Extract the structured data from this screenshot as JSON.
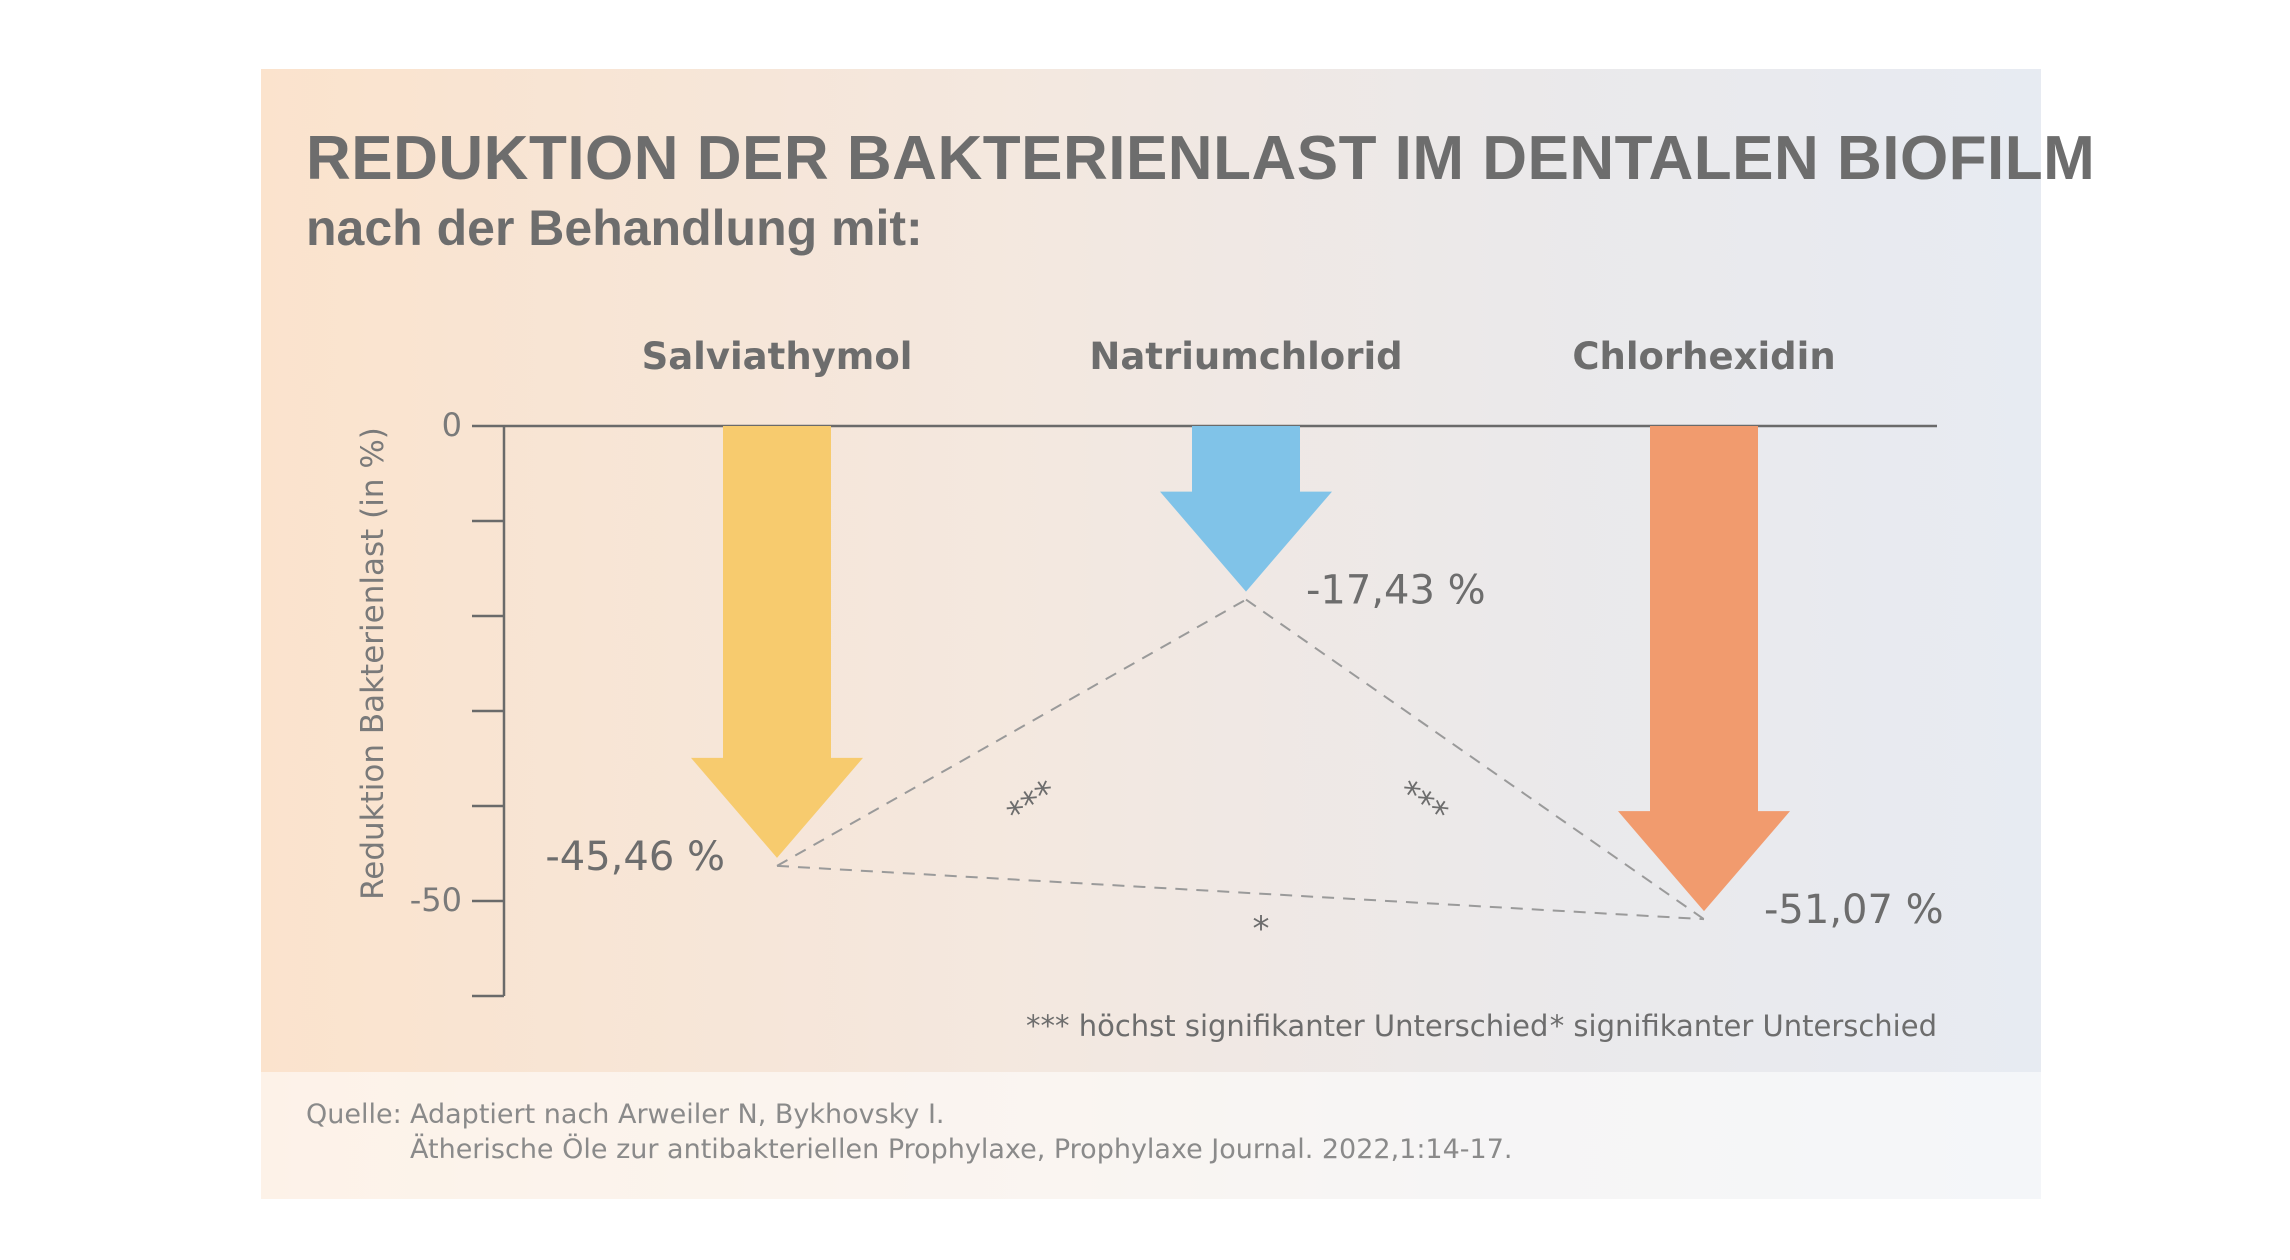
{
  "title": "REDUKTION DER BAKTERIENLAST IM DENTALEN BIOFILM",
  "subtitle": "nach der Behandlung mit:",
  "chart_data": {
    "type": "bar",
    "orientation": "downward-arrows",
    "categories": [
      "Salviathymol",
      "Natriumchlorid",
      "Chlorhexidin"
    ],
    "values": [
      -45.46,
      -17.43,
      -51.07
    ],
    "value_labels": [
      "-45,46 %",
      "-17,43 %",
      "-51,07 %"
    ],
    "colors": [
      "#f7cb6e",
      "#80c3e8",
      "#f19b6e"
    ],
    "ylabel": "Reduktion Bakterienlast (in %)",
    "ylim": [
      -60,
      0
    ],
    "yticks": [
      0,
      -10,
      -20,
      -30,
      -40,
      -50,
      -60
    ],
    "ytick_labels": [
      "0",
      "",
      "",
      "",
      "",
      "-50",
      ""
    ],
    "grid": false,
    "significance": [
      {
        "from": "Salviathymol",
        "to": "Natriumchlorid",
        "marker": "***"
      },
      {
        "from": "Natriumchlorid",
        "to": "Chlorhexidin",
        "marker": "***"
      },
      {
        "from": "Salviathymol",
        "to": "Chlorhexidin",
        "marker": "*"
      }
    ],
    "legend": [
      {
        "marker": "***",
        "text": "höchst signifikanter Unterschied"
      },
      {
        "marker": "*",
        "text": "signifikanter Unterschied"
      }
    ]
  },
  "source": {
    "label": "Quelle:",
    "line1": "Adaptiert nach Arweiler N, Bykhovsky I.",
    "line2": "Ätherische Öle zur antibakteriellen Prophylaxe, Prophylaxe Journal. 2022,1:14-17."
  }
}
